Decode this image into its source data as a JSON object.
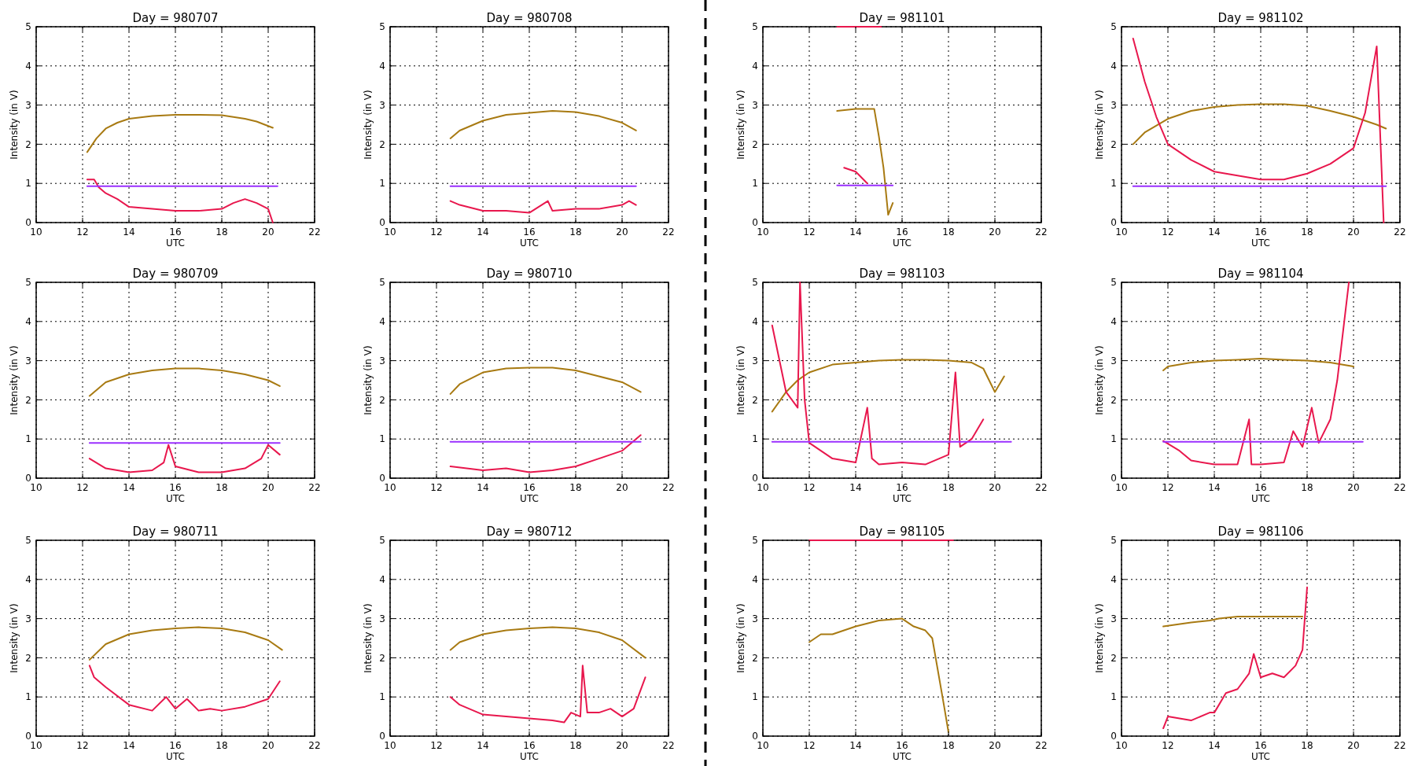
{
  "chart_data": [
    {
      "type": "line",
      "title": "Day = 980707",
      "xlabel": "UTC",
      "ylabel": "Intensity (in V)",
      "xlim": [
        10,
        22
      ],
      "ylim": [
        0,
        5
      ],
      "xticks": [
        10,
        12,
        14,
        16,
        18,
        20,
        22
      ],
      "yticks": [
        0,
        1,
        2,
        3,
        4,
        5
      ],
      "grid": true,
      "marker": "none",
      "series": [
        {
          "color": "#a87a12",
          "x": [
            12.2,
            12.6,
            13,
            13.5,
            14,
            15,
            16,
            17,
            18,
            19,
            19.5,
            20.2
          ],
          "values": [
            1.8,
            2.15,
            2.4,
            2.55,
            2.65,
            2.72,
            2.75,
            2.75,
            2.74,
            2.65,
            2.58,
            2.42
          ]
        },
        {
          "color": "#e8174d",
          "x": [
            12.2,
            12.5,
            12.7,
            13,
            13.5,
            14,
            15,
            16,
            17,
            18,
            18.5,
            19,
            19.5,
            20,
            20.2
          ],
          "values": [
            1.1,
            1.1,
            0.9,
            0.75,
            0.6,
            0.4,
            0.35,
            0.3,
            0.3,
            0.35,
            0.5,
            0.6,
            0.5,
            0.35,
            0
          ]
        },
        {
          "color": "#9b30ff",
          "x": [
            12.2,
            20.4
          ],
          "values": [
            0.93,
            0.93
          ]
        }
      ]
    },
    {
      "type": "line",
      "title": "Day = 980708",
      "xlabel": "UTC",
      "ylabel": "Intensity (in V)",
      "xlim": [
        10,
        22
      ],
      "ylim": [
        0,
        5
      ],
      "xticks": [
        10,
        12,
        14,
        16,
        18,
        20,
        22
      ],
      "yticks": [
        0,
        1,
        2,
        3,
        4,
        5
      ],
      "grid": true,
      "marker": "none",
      "series": [
        {
          "color": "#a87a12",
          "x": [
            12.6,
            13,
            14,
            15,
            16,
            17,
            18,
            19,
            20,
            20.6
          ],
          "values": [
            2.15,
            2.35,
            2.6,
            2.75,
            2.8,
            2.85,
            2.82,
            2.72,
            2.55,
            2.35
          ]
        },
        {
          "color": "#e8174d",
          "x": [
            12.6,
            13,
            14,
            15,
            16,
            16.8,
            17,
            18,
            19,
            20,
            20.3,
            20.6
          ],
          "values": [
            0.55,
            0.45,
            0.3,
            0.3,
            0.25,
            0.55,
            0.3,
            0.35,
            0.35,
            0.45,
            0.55,
            0.45
          ]
        },
        {
          "color": "#9b30ff",
          "x": [
            12.6,
            20.6
          ],
          "values": [
            0.93,
            0.93
          ]
        }
      ]
    },
    {
      "type": "line",
      "title": "Day = 981101",
      "xlabel": "UTC",
      "ylabel": "Intensity (in V)",
      "xlim": [
        10,
        22
      ],
      "ylim": [
        0,
        5
      ],
      "xticks": [
        10,
        12,
        14,
        16,
        18,
        20,
        22
      ],
      "yticks": [
        0,
        1,
        2,
        3,
        4,
        5
      ],
      "grid": true,
      "marker": "none",
      "series": [
        {
          "color": "#a87a12",
          "x": [
            13.2,
            14,
            14.8,
            15,
            15.2,
            15.4,
            15.6
          ],
          "values": [
            2.85,
            2.9,
            2.9,
            2.2,
            1.4,
            0.2,
            0.5
          ]
        },
        {
          "color": "#e8174d",
          "x": [
            13.2,
            15.1,
            null,
            13.5,
            14,
            14.5
          ],
          "values": [
            5,
            5,
            null,
            1.4,
            1.3,
            1.0
          ]
        },
        {
          "color": "#9b30ff",
          "x": [
            13.2,
            15.6
          ],
          "values": [
            0.95,
            0.95
          ]
        }
      ]
    },
    {
      "type": "line",
      "title": "Day = 981102",
      "xlabel": "UTC",
      "ylabel": "Intensity (in V)",
      "xlim": [
        10,
        22
      ],
      "ylim": [
        0,
        5
      ],
      "xticks": [
        10,
        12,
        14,
        16,
        18,
        20,
        22
      ],
      "yticks": [
        0,
        1,
        2,
        3,
        4,
        5
      ],
      "grid": true,
      "marker": "none",
      "series": [
        {
          "color": "#a87a12",
          "x": [
            10.5,
            11,
            12,
            13,
            14,
            15,
            16,
            17,
            18,
            19,
            20,
            21,
            21.4
          ],
          "values": [
            2.0,
            2.3,
            2.65,
            2.85,
            2.95,
            3.0,
            3.02,
            3.02,
            2.98,
            2.85,
            2.7,
            2.5,
            2.4
          ]
        },
        {
          "color": "#e8174d",
          "x": [
            10.5,
            11,
            11.5,
            12,
            13,
            14,
            15,
            16,
            17,
            18,
            19,
            20,
            20.5,
            21,
            21.3
          ],
          "values": [
            4.7,
            3.6,
            2.7,
            2.0,
            1.6,
            1.3,
            1.2,
            1.1,
            1.1,
            1.25,
            1.5,
            1.9,
            2.8,
            4.5,
            0
          ]
        },
        {
          "color": "#9b30ff",
          "x": [
            10.5,
            21.4
          ],
          "values": [
            0.93,
            0.93
          ]
        }
      ]
    },
    {
      "type": "line",
      "title": "Day = 980709",
      "xlabel": "UTC",
      "ylabel": "Intensity (in V)",
      "xlim": [
        10,
        22
      ],
      "ylim": [
        0,
        5
      ],
      "xticks": [
        10,
        12,
        14,
        16,
        18,
        20,
        22
      ],
      "yticks": [
        0,
        1,
        2,
        3,
        4,
        5
      ],
      "grid": true,
      "marker": "none",
      "series": [
        {
          "color": "#a87a12",
          "x": [
            12.3,
            13,
            14,
            15,
            16,
            17,
            18,
            19,
            20,
            20.5
          ],
          "values": [
            2.1,
            2.45,
            2.65,
            2.75,
            2.8,
            2.8,
            2.75,
            2.65,
            2.5,
            2.35
          ]
        },
        {
          "color": "#e8174d",
          "x": [
            12.3,
            13,
            14,
            15,
            15.5,
            15.7,
            16,
            17,
            18,
            19,
            19.7,
            20,
            20.5
          ],
          "values": [
            0.5,
            0.25,
            0.15,
            0.2,
            0.4,
            0.85,
            0.3,
            0.15,
            0.15,
            0.25,
            0.5,
            0.85,
            0.6
          ]
        },
        {
          "color": "#9b30ff",
          "x": [
            12.3,
            20.5
          ],
          "values": [
            0.9,
            0.9
          ]
        }
      ]
    },
    {
      "type": "line",
      "title": "Day = 980710",
      "xlabel": "UTC",
      "ylabel": "Intensity (in V)",
      "xlim": [
        10,
        22
      ],
      "ylim": [
        0,
        5
      ],
      "xticks": [
        10,
        12,
        14,
        16,
        18,
        20,
        22
      ],
      "yticks": [
        0,
        1,
        2,
        3,
        4,
        5
      ],
      "grid": true,
      "marker": "none",
      "series": [
        {
          "color": "#a87a12",
          "x": [
            12.6,
            13,
            14,
            15,
            16,
            17,
            18,
            19,
            20,
            20.8
          ],
          "values": [
            2.15,
            2.4,
            2.7,
            2.8,
            2.82,
            2.82,
            2.75,
            2.6,
            2.45,
            2.2
          ]
        },
        {
          "color": "#e8174d",
          "x": [
            12.6,
            14,
            15,
            16,
            17,
            18,
            19,
            20,
            20.8
          ],
          "values": [
            0.3,
            0.2,
            0.25,
            0.15,
            0.2,
            0.3,
            0.5,
            0.7,
            1.1
          ]
        },
        {
          "color": "#9b30ff",
          "x": [
            12.6,
            20.8
          ],
          "values": [
            0.93,
            0.93
          ]
        }
      ]
    },
    {
      "type": "line",
      "title": "Day = 981103",
      "xlabel": "UTC",
      "ylabel": "Intensity (in V)",
      "xlim": [
        10,
        22
      ],
      "ylim": [
        0,
        5
      ],
      "xticks": [
        10,
        12,
        14,
        16,
        18,
        20,
        22
      ],
      "yticks": [
        0,
        1,
        2,
        3,
        4,
        5
      ],
      "grid": true,
      "marker": "none",
      "series": [
        {
          "color": "#a87a12",
          "x": [
            10.4,
            11,
            11.5,
            12,
            13,
            14,
            15,
            16,
            17,
            18,
            19,
            19.5,
            20,
            20.4
          ],
          "values": [
            1.7,
            2.2,
            2.5,
            2.7,
            2.9,
            2.95,
            3.0,
            3.02,
            3.02,
            3.0,
            2.95,
            2.8,
            2.2,
            2.6
          ]
        },
        {
          "color": "#e8174d",
          "x": [
            10.4,
            11,
            11.5,
            11.6,
            11.8,
            12,
            12.5,
            13,
            14,
            14.5,
            14.7,
            15,
            16,
            17,
            18,
            18.3,
            18.5,
            19,
            19.5
          ],
          "values": [
            3.9,
            2.2,
            1.8,
            5,
            2.0,
            0.9,
            0.7,
            0.5,
            0.4,
            1.8,
            0.5,
            0.35,
            0.4,
            0.35,
            0.6,
            2.7,
            0.8,
            1.0,
            1.5
          ]
        },
        {
          "color": "#9b30ff",
          "x": [
            10.4,
            20.7
          ],
          "values": [
            0.93,
            0.93
          ]
        }
      ]
    },
    {
      "type": "line",
      "title": "Day = 981104",
      "xlabel": "UTC",
      "ylabel": "Intensity (in V)",
      "xlim": [
        10,
        22
      ],
      "ylim": [
        0,
        5
      ],
      "xticks": [
        10,
        12,
        14,
        16,
        18,
        20,
        22
      ],
      "yticks": [
        0,
        1,
        2,
        3,
        4,
        5
      ],
      "grid": true,
      "marker": "none",
      "series": [
        {
          "color": "#a87a12",
          "x": [
            11.8,
            12,
            13,
            14,
            15,
            16,
            17,
            18,
            19,
            20
          ],
          "values": [
            2.75,
            2.85,
            2.95,
            3.0,
            3.02,
            3.05,
            3.02,
            3.0,
            2.95,
            2.85
          ]
        },
        {
          "color": "#e8174d",
          "x": [
            11.8,
            12.5,
            13,
            14,
            15,
            15.5,
            15.6,
            16,
            17,
            17.4,
            17.8,
            18.2,
            18.5,
            19,
            19.3,
            19.6,
            19.8
          ],
          "values": [
            0.95,
            0.7,
            0.45,
            0.35,
            0.35,
            1.5,
            0.35,
            0.35,
            0.4,
            1.2,
            0.8,
            1.8,
            0.9,
            1.5,
            2.5,
            4.0,
            5.0
          ]
        },
        {
          "color": "#9b30ff",
          "x": [
            11.8,
            20.4
          ],
          "values": [
            0.93,
            0.93
          ]
        }
      ]
    },
    {
      "type": "line",
      "title": "Day = 980711",
      "xlabel": "UTC",
      "ylabel": "Intensity (in V)",
      "xlim": [
        10,
        22
      ],
      "ylim": [
        0,
        5
      ],
      "xticks": [
        10,
        12,
        14,
        16,
        18,
        20,
        22
      ],
      "yticks": [
        0,
        1,
        2,
        3,
        4,
        5
      ],
      "grid": true,
      "marker": "none",
      "series": [
        {
          "color": "#a87a12",
          "x": [
            12.3,
            13,
            14,
            15,
            16,
            17,
            18,
            19,
            20,
            20.6
          ],
          "values": [
            1.95,
            2.35,
            2.6,
            2.7,
            2.75,
            2.78,
            2.75,
            2.65,
            2.45,
            2.2
          ]
        },
        {
          "color": "#e8174d",
          "x": [
            12.3,
            12.5,
            13,
            14,
            15,
            15.6,
            16,
            16.5,
            17,
            17.5,
            18,
            19,
            20,
            20.5
          ],
          "values": [
            1.8,
            1.5,
            1.25,
            0.8,
            0.65,
            1.0,
            0.7,
            0.95,
            0.65,
            0.7,
            0.65,
            0.75,
            0.95,
            1.4
          ]
        }
      ]
    },
    {
      "type": "line",
      "title": "Day = 980712",
      "xlabel": "UTC",
      "ylabel": "Intensity (in V)",
      "xlim": [
        10,
        22
      ],
      "ylim": [
        0,
        5
      ],
      "xticks": [
        10,
        12,
        14,
        16,
        18,
        20,
        22
      ],
      "yticks": [
        0,
        1,
        2,
        3,
        4,
        5
      ],
      "grid": true,
      "marker": "none",
      "series": [
        {
          "color": "#a87a12",
          "x": [
            12.6,
            13,
            14,
            15,
            16,
            17,
            18,
            19,
            20,
            21
          ],
          "values": [
            2.2,
            2.4,
            2.6,
            2.7,
            2.75,
            2.78,
            2.75,
            2.65,
            2.45,
            2.0
          ]
        },
        {
          "color": "#e8174d",
          "x": [
            12.6,
            13,
            14,
            15,
            16,
            17,
            17.5,
            17.8,
            18.2,
            18.3,
            18.5,
            19,
            19.5,
            20,
            20.5,
            21
          ],
          "values": [
            1.0,
            0.8,
            0.55,
            0.5,
            0.45,
            0.4,
            0.35,
            0.6,
            0.5,
            1.8,
            0.6,
            0.6,
            0.7,
            0.5,
            0.7,
            1.5
          ]
        }
      ]
    },
    {
      "type": "line",
      "title": "Day = 981105",
      "xlabel": "UTC",
      "ylabel": "Intensity (in V)",
      "xlim": [
        10,
        22
      ],
      "ylim": [
        0,
        5
      ],
      "xticks": [
        10,
        12,
        14,
        16,
        18,
        20,
        22
      ],
      "yticks": [
        0,
        1,
        2,
        3,
        4,
        5
      ],
      "grid": true,
      "marker": "none",
      "series": [
        {
          "color": "#a87a12",
          "x": [
            12,
            12.5,
            13,
            14,
            15,
            16,
            16.5,
            17,
            17.3,
            17.8,
            18
          ],
          "values": [
            2.4,
            2.6,
            2.6,
            2.8,
            2.95,
            3.0,
            2.8,
            2.7,
            2.5,
            0.8,
            0.1
          ]
        },
        {
          "color": "#e8174d",
          "x": [
            12,
            18.2
          ],
          "values": [
            5,
            5
          ]
        }
      ]
    },
    {
      "type": "line",
      "title": "Day = 981106",
      "xlabel": "UTC",
      "ylabel": "Intensity (in V)",
      "xlim": [
        10,
        22
      ],
      "ylim": [
        0,
        5
      ],
      "xticks": [
        10,
        12,
        14,
        16,
        18,
        20,
        22
      ],
      "yticks": [
        0,
        1,
        2,
        3,
        4,
        5
      ],
      "grid": true,
      "marker": "none",
      "series": [
        {
          "color": "#a87a12",
          "x": [
            11.8,
            13,
            13.8,
            14.2,
            15,
            16,
            17,
            17.8
          ],
          "values": [
            2.8,
            2.9,
            2.95,
            3.0,
            3.05,
            3.05,
            3.05,
            3.05
          ]
        },
        {
          "color": "#e8174d",
          "x": [
            11.8,
            12,
            13,
            13.8,
            14,
            14.5,
            15,
            15.5,
            15.7,
            16,
            16.5,
            17,
            17.5,
            17.8,
            18
          ],
          "values": [
            0.2,
            0.5,
            0.4,
            0.6,
            0.6,
            1.1,
            1.2,
            1.6,
            2.1,
            1.5,
            1.6,
            1.5,
            1.8,
            2.2,
            3.8
          ]
        }
      ]
    }
  ]
}
